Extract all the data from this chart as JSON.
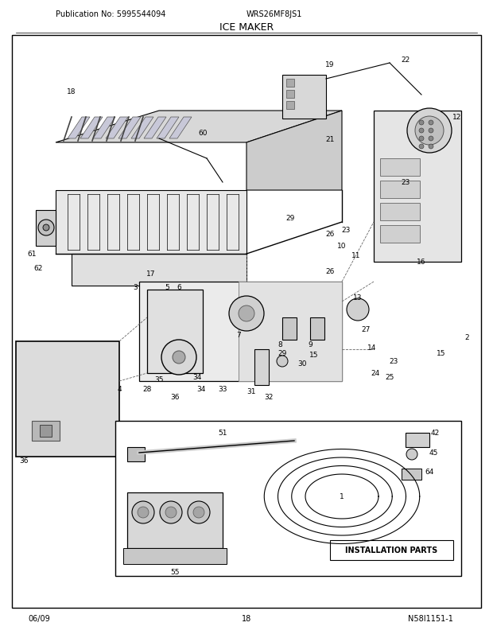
{
  "publication_no": "Publication No: 5995544094",
  "model": "WRS26MF8JS1",
  "title": "ICE MAKER",
  "footer_left": "06/09",
  "footer_center": "18",
  "footer_right": "N58I1151-1",
  "bg_color": "#ffffff",
  "figsize": [
    6.2,
    8.03
  ],
  "dpi": 100
}
